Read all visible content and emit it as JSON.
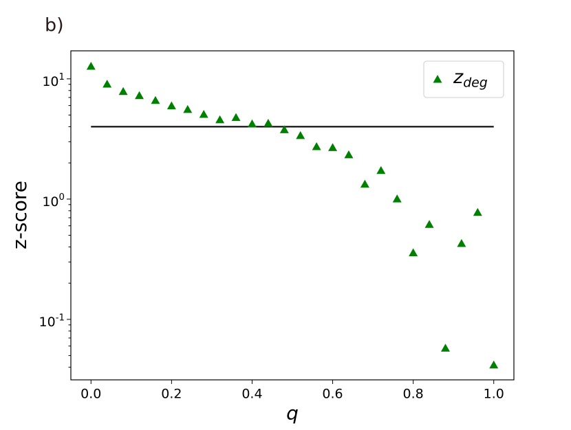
{
  "chart_data": {
    "type": "scatter",
    "panel_label": "b)",
    "xlabel": "q",
    "ylabel": "z-score",
    "x": [
      0,
      0.04,
      0.08,
      0.12,
      0.16,
      0.2,
      0.24,
      0.28,
      0.32,
      0.36,
      0.4,
      0.44,
      0.48,
      0.52,
      0.56,
      0.6,
      0.64,
      0.68,
      0.72,
      0.76,
      0.8,
      0.84,
      0.88,
      0.92,
      0.96,
      1
    ],
    "series": [
      {
        "name": "z_deg",
        "color": "#008000",
        "values": [
          12.8,
          9.1,
          7.9,
          7.3,
          6.65,
          6.0,
          5.6,
          5.1,
          4.6,
          4.8,
          4.25,
          4.3,
          3.8,
          3.4,
          2.75,
          2.7,
          2.35,
          1.34,
          1.74,
          1.01,
          0.36,
          0.62,
          0.058,
          0.43,
          0.78,
          0.042
        ]
      }
    ],
    "reference_line": {
      "x": [
        0,
        1
      ],
      "y": 4,
      "color": "#000000"
    },
    "xlim": [
      -0.05,
      1.05
    ],
    "ylim": [
      0.0314,
      17.1
    ],
    "yscale": "log",
    "xticks": [
      {
        "value": 0,
        "label": "0.0"
      },
      0.2,
      0.4,
      0.6,
      0.8,
      {
        "value": 1,
        "label": "1.0"
      }
    ],
    "yticks": [
      {
        "value": 0.1,
        "label": "10^-1"
      },
      {
        "value": 1,
        "label": "10^0"
      },
      {
        "value": 10,
        "label": "10^1"
      }
    ],
    "grid": false,
    "legend": "upper right"
  }
}
